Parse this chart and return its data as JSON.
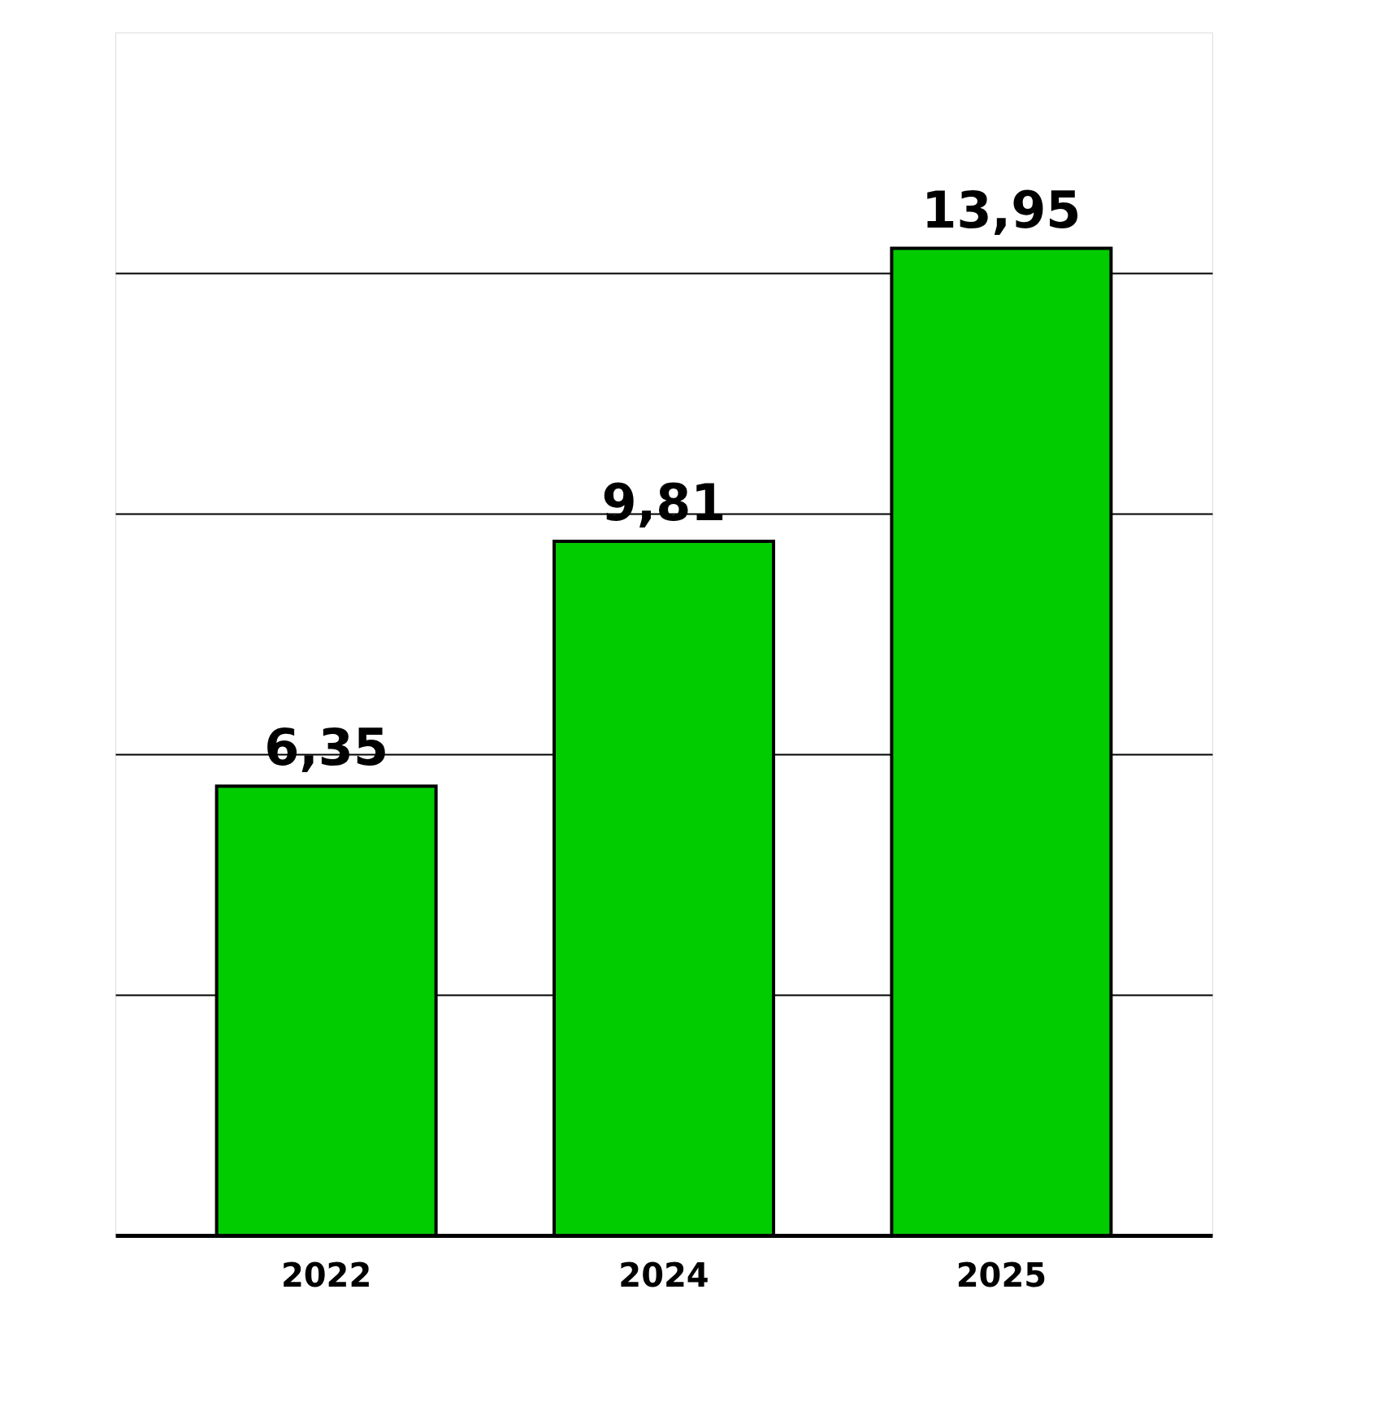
{
  "chart_data": {
    "type": "bar",
    "categories": [
      "2022",
      "2024",
      "2025"
    ],
    "values": [
      6.35,
      9.81,
      13.95
    ],
    "value_labels": [
      "6,35",
      "9,81",
      "13,95"
    ],
    "color": "#00cc00",
    "ylim": [
      0,
      17
    ],
    "yticks": [
      {
        "value": 3.4,
        "label": null
      },
      {
        "value": 6.8,
        "label": null
      },
      {
        "value": 10.2,
        "label": null
      },
      {
        "value": 13.6,
        "label": null
      }
    ],
    "grid": "y"
  }
}
